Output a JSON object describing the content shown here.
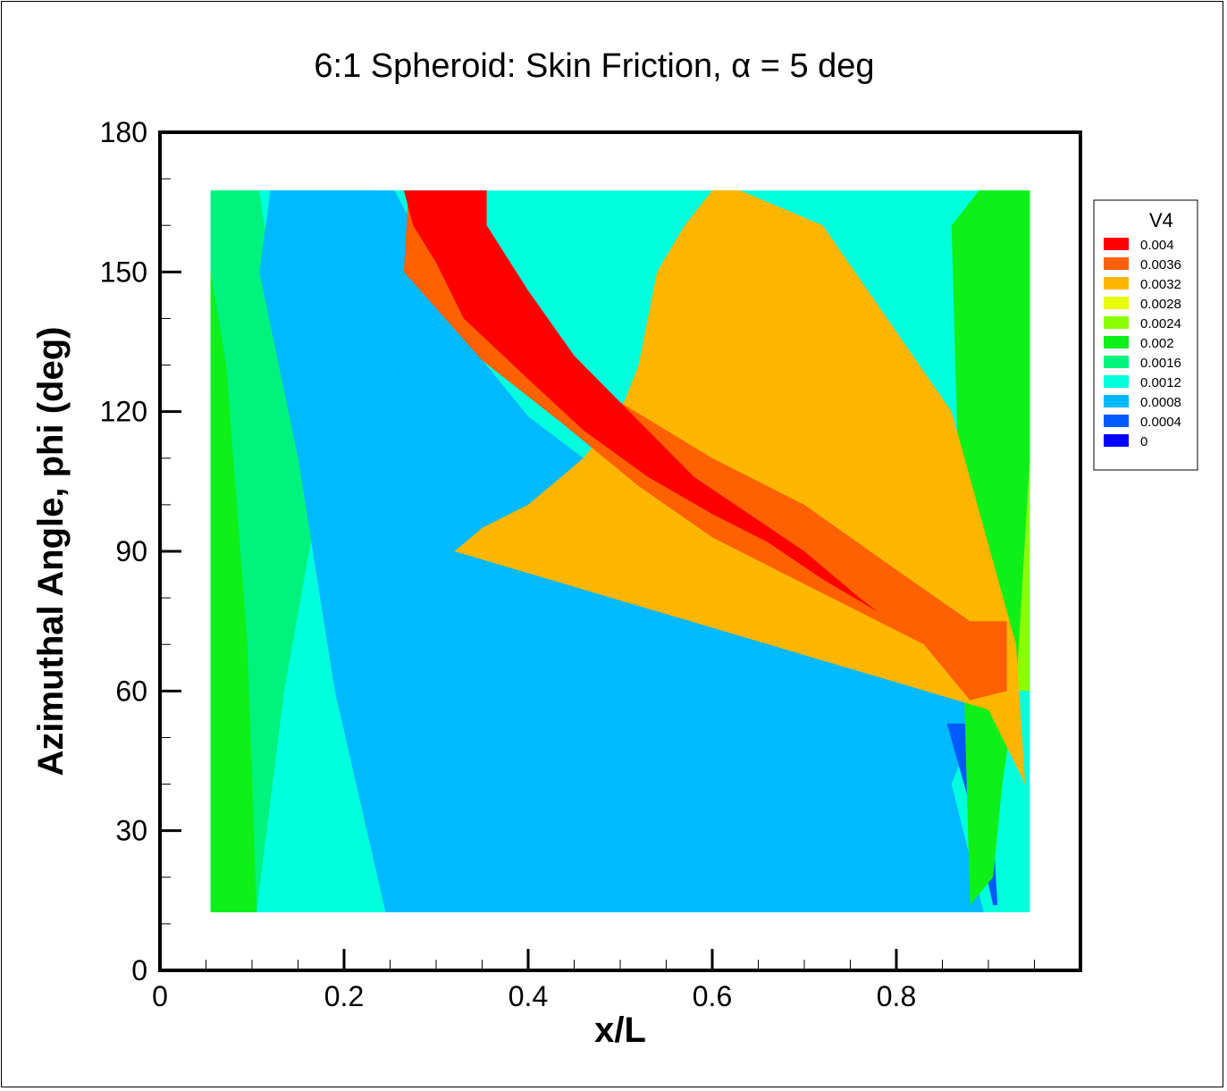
{
  "chart_data": {
    "type": "heatmap",
    "subtype": "filled-contour",
    "title": "6:1 Spheroid: Skin Friction, α = 5 deg",
    "xlabel": "x/L",
    "ylabel": "Azimuthal Angle, phi (deg)",
    "xlim": [
      0,
      1.0
    ],
    "ylim": [
      0,
      180
    ],
    "x_ticks": [
      "0",
      "0.2",
      "0.4",
      "0.6",
      "0.8"
    ],
    "y_ticks": [
      "0",
      "30",
      "60",
      "90",
      "120",
      "150",
      "180"
    ],
    "data_domain": {
      "x": [
        0.055,
        0.945
      ],
      "y": [
        12.5,
        167.5
      ]
    },
    "legend": {
      "title": "V4",
      "placement": "right",
      "levels": [
        {
          "label": "0.004",
          "color": "#ff0000"
        },
        {
          "label": "0.0036",
          "color": "#ff6000"
        },
        {
          "label": "0.0032",
          "color": "#ffb600"
        },
        {
          "label": "0.0028",
          "color": "#e7ff00"
        },
        {
          "label": "0.0024",
          "color": "#8aff00"
        },
        {
          "label": "0.002",
          "color": "#0ef018"
        },
        {
          "label": "0.0016",
          "color": "#00f47d"
        },
        {
          "label": "0.0012",
          "color": "#00ffdd"
        },
        {
          "label": "0.0008",
          "color": "#00baff"
        },
        {
          "label": "0.0004",
          "color": "#005bff"
        },
        {
          "label": "0",
          "color": "#0000ff"
        }
      ]
    },
    "contour_bands": [
      {
        "level": "0.0016",
        "x": [
          0.055,
          0.105,
          0.135,
          0.18,
          0.215,
          0.23,
          0.055
        ],
        "y": [
          12.5,
          12.5,
          60,
          110,
          150,
          167.5,
          167.5
        ]
      },
      {
        "level": "0.002",
        "x": [
          0.055,
          0.105,
          0.095,
          0.072,
          0.055
        ],
        "y": [
          12.5,
          12.5,
          70,
          130,
          150
        ]
      },
      {
        "level": "0.0012",
        "x": [
          0.105,
          0.245,
          0.19,
          0.15,
          0.108,
          0.12,
          0.23,
          0.135
        ],
        "y": [
          12.5,
          12.5,
          60,
          110,
          167.5,
          167.5,
          150,
          60
        ]
      },
      {
        "level": "0.0008",
        "x": [
          0.23,
          0.72,
          0.67,
          0.56,
          0.43,
          0.32,
          0.255,
          0.245,
          0.12,
          0.108,
          0.15,
          0.19,
          0.245
        ],
        "y": [
          12.5,
          12.5,
          25,
          40,
          55,
          80,
          120,
          167.5,
          167.5,
          150,
          110,
          60,
          12.5
        ]
      },
      {
        "level": "0.0008",
        "x": [
          0.72,
          0.895,
          0.86,
          0.88,
          0.88,
          0.8,
          0.7,
          0.58,
          0.48,
          0.4,
          0.33,
          0.28,
          0.255,
          0.245,
          0.255,
          0.32,
          0.43,
          0.56,
          0.67
        ],
        "y": [
          12.5,
          12.5,
          40,
          50,
          58,
          72,
          84,
          97,
          107,
          119,
          136,
          158,
          167.5,
          167.5,
          120,
          80,
          55,
          40,
          25
        ]
      },
      {
        "level": "0.0004",
        "x": [
          0.855,
          0.885,
          0.905,
          0.91,
          0.905,
          0.885
        ],
        "y": [
          53,
          53,
          30,
          14,
          14,
          32
        ]
      },
      {
        "level": "0.0024",
        "x": [
          0.93,
          0.945,
          0.945,
          0.92,
          0.94
        ],
        "y": [
          60,
          60,
          110,
          167.5,
          150
        ]
      },
      {
        "level": "0.002",
        "x": [
          0.89,
          0.945,
          0.945,
          0.93,
          0.915,
          0.905,
          0.88,
          0.86,
          0.89
        ],
        "y": [
          167.5,
          167.5,
          110,
          60,
          40,
          20,
          14,
          160,
          167.5
        ]
      },
      {
        "level": "0.0032",
        "x": [
          0.9,
          0.94,
          0.93,
          0.86,
          0.72,
          0.63,
          0.6,
          0.57,
          0.54,
          0.53,
          0.52,
          0.5,
          0.46,
          0.4,
          0.35,
          0.32
        ],
        "y": [
          56,
          40,
          70,
          120,
          160,
          167.5,
          167.5,
          160,
          150,
          140,
          130,
          120,
          110,
          100,
          95,
          90
        ]
      },
      {
        "level": "0.0036",
        "x": [
          0.88,
          0.92,
          0.92,
          0.88,
          0.8,
          0.7,
          0.6,
          0.5,
          0.42,
          0.35,
          0.3,
          0.27,
          0.265,
          0.35,
          0.44,
          0.52,
          0.6,
          0.68,
          0.76,
          0.83
        ],
        "y": [
          58,
          60,
          75,
          75,
          86,
          100,
          110,
          122,
          136,
          150,
          160,
          167.5,
          150,
          131,
          117,
          104,
          93,
          85,
          77,
          70
        ]
      },
      {
        "level": "0.004",
        "x": [
          0.265,
          0.355,
          0.355,
          0.4,
          0.45,
          0.52,
          0.58,
          0.64,
          0.7,
          0.76,
          0.78,
          0.72,
          0.66,
          0.6,
          0.53,
          0.46,
          0.4,
          0.33,
          0.3,
          0.275
        ],
        "y": [
          167.5,
          167.5,
          160,
          146,
          132,
          118,
          106,
          98,
          90,
          80,
          77,
          84,
          92,
          98,
          106,
          116,
          127,
          140,
          152,
          160
        ]
      }
    ]
  }
}
